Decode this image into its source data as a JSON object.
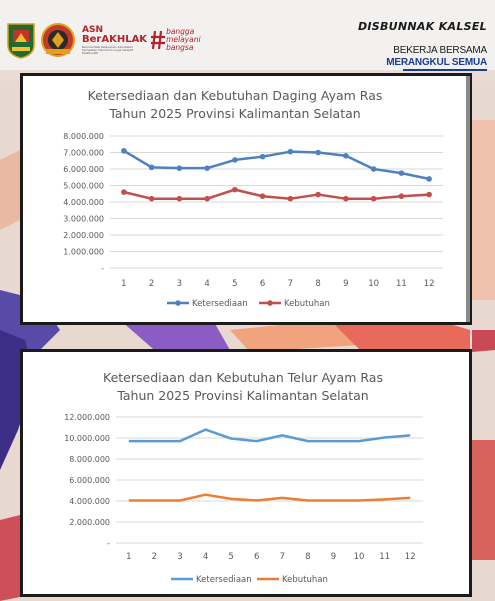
{
  "header": {
    "asn_top": "ASN",
    "asn_main": "BerAKHLAK",
    "asn_sub": "Berorientasi Pelayanan Akuntabel Kompeten Harmonis Loyal Adaptif Kolaboratif",
    "bangga_lines": [
      "bangga",
      "melayani",
      "bangsa"
    ],
    "org_name": "DISBUNNAK KALSEL",
    "tagline1": "BEKERJA BERSAMA",
    "tagline2": "MERANGKUL SEMUA"
  },
  "colors": {
    "chart1_supply": "#4f81bd",
    "chart1_demand": "#c0504d",
    "chart2_supply": "#5b9bd5",
    "chart2_demand": "#ed7d31"
  },
  "chart_data": [
    {
      "type": "line",
      "title": "Ketersediaan dan Kebutuhan Daging Ayam Ras",
      "subtitle": "Tahun 2025 Provinsi Kalimantan Selatan",
      "x": [
        1,
        2,
        3,
        4,
        5,
        6,
        7,
        8,
        9,
        10,
        11,
        12
      ],
      "x_tick_labels": [
        "1",
        "2",
        "3",
        "4",
        "5",
        "6",
        "7",
        "8",
        "9",
        "10",
        "11",
        "12"
      ],
      "ylim": [
        0,
        8000000
      ],
      "y_tick_labels": [
        "-",
        "1.000.000",
        "2.000.000",
        "3.000.000",
        "4.000.000",
        "5.000.000",
        "6.000.000",
        "7.000.000",
        "8.000.000"
      ],
      "grid": true,
      "legend_position": "bottom",
      "series": [
        {
          "name": "Ketersediaan",
          "values": [
            7100000,
            6100000,
            6050000,
            6050000,
            6550000,
            6750000,
            7050000,
            7000000,
            6800000,
            6000000,
            5750000,
            5400000
          ]
        },
        {
          "name": "Kebutuhan",
          "values": [
            4600000,
            4200000,
            4200000,
            4200000,
            4750000,
            4350000,
            4200000,
            4450000,
            4200000,
            4200000,
            4350000,
            4450000
          ]
        }
      ]
    },
    {
      "type": "line",
      "title": "Ketersediaan dan Kebutuhan Telur Ayam Ras",
      "subtitle": "Tahun 2025 Provinsi Kalimantan Selatan",
      "x": [
        1,
        2,
        3,
        4,
        5,
        6,
        7,
        8,
        9,
        10,
        11,
        12
      ],
      "x_tick_labels": [
        "1",
        "2",
        "3",
        "4",
        "5",
        "6",
        "7",
        "8",
        "9",
        "10",
        "11",
        "12"
      ],
      "ylim": [
        0,
        12000000
      ],
      "y_tick_labels": [
        "-",
        "2.000.000",
        "4.000.000",
        "6.000.000",
        "8.000.000",
        "10.000.000",
        "12.000.000"
      ],
      "grid": true,
      "legend_position": "bottom",
      "series": [
        {
          "name": "Ketersediaan",
          "values": [
            9700000,
            9700000,
            9700000,
            10800000,
            9950000,
            9700000,
            10250000,
            9700000,
            9700000,
            9700000,
            10050000,
            10250000
          ]
        },
        {
          "name": "Kebutuhan",
          "values": [
            4050000,
            4050000,
            4050000,
            4600000,
            4200000,
            4050000,
            4300000,
            4050000,
            4050000,
            4050000,
            4150000,
            4300000
          ]
        }
      ]
    }
  ]
}
